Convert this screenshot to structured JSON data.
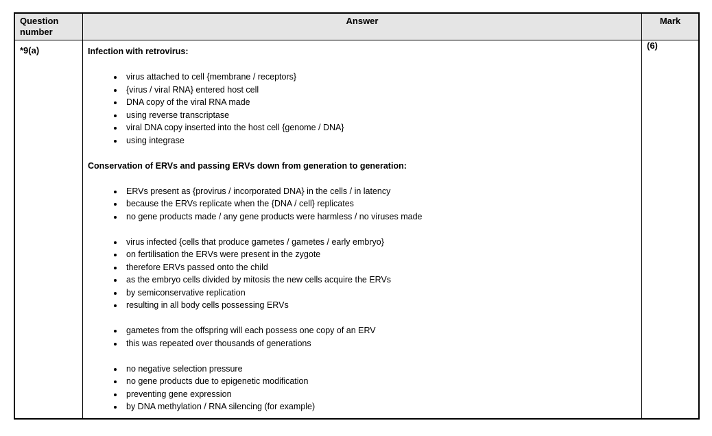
{
  "table": {
    "header": {
      "question": "Question number",
      "answer": "Answer",
      "mark": "Mark",
      "header_bg": "#e5e5e5"
    },
    "row": {
      "question_number": "*9(a)",
      "mark": "(6)",
      "answer_blocks": [
        {
          "type": "heading",
          "text": "Infection with retrovirus:"
        },
        {
          "type": "bullets",
          "items": [
            "virus attached to cell {membrane / receptors}",
            "{virus / viral RNA} entered host cell",
            "DNA copy of the viral RNA made",
            "using reverse transcriptase",
            "viral DNA copy inserted into the host cell {genome / DNA}",
            "using integrase"
          ]
        },
        {
          "type": "heading",
          "text": "Conservation of ERVs and passing ERVs down from generation to generation:"
        },
        {
          "type": "bullets",
          "items": [
            "ERVs present as {provirus / incorporated DNA} in the cells / in latency",
            "because the ERVs replicate when the {DNA / cell} replicates",
            "no gene products made / any gene products were harmless / no viruses made"
          ]
        },
        {
          "type": "bullets",
          "items": [
            "virus infected {cells that produce gametes / gametes / early embryo}",
            "on fertilisation the ERVs were present in the zygote",
            "therefore ERVs passed onto the child",
            "as the embryo cells divided by mitosis the new cells acquire the ERVs",
            "by semiconservative replication",
            "resulting in all body cells possessing ERVs"
          ]
        },
        {
          "type": "bullets",
          "items": [
            "gametes from the offspring will each possess one copy of an ERV",
            "this was repeated over thousands of generations"
          ]
        },
        {
          "type": "bullets",
          "items": [
            "no negative selection pressure",
            "no gene products due to epigenetic modification",
            "preventing gene expression",
            "by DNA methylation / RNA silencing (for example)"
          ]
        }
      ]
    }
  }
}
